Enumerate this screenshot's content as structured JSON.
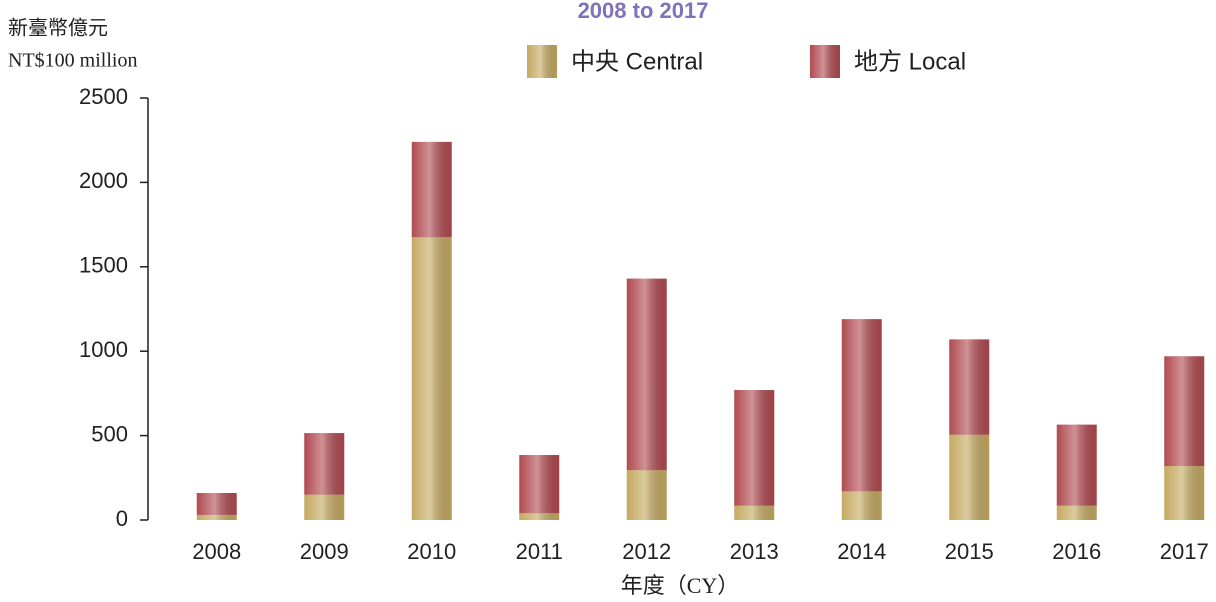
{
  "chart_data": {
    "type": "stacked_bar",
    "title": "2008 to 2017",
    "y_label_zh": "新臺幣億元",
    "y_label": "NT$100 million",
    "x_label": "年度（CY）",
    "categories": [
      "2008",
      "2009",
      "2010",
      "2011",
      "2012",
      "2013",
      "2014",
      "2015",
      "2016",
      "2017"
    ],
    "series": [
      {
        "name": "中央 Central",
        "color": "#c4a960",
        "values": [
          30,
          150,
          1675,
          40,
          295,
          85,
          170,
          505,
          85,
          320
        ]
      },
      {
        "name": "地方 Local",
        "color": "#b04a50",
        "values": [
          130,
          365,
          565,
          345,
          1135,
          685,
          1020,
          565,
          480,
          650
        ]
      }
    ],
    "ylim": [
      0,
      2500
    ],
    "yticks": [
      0,
      500,
      1000,
      1500,
      2000,
      2500
    ],
    "grid": false
  }
}
